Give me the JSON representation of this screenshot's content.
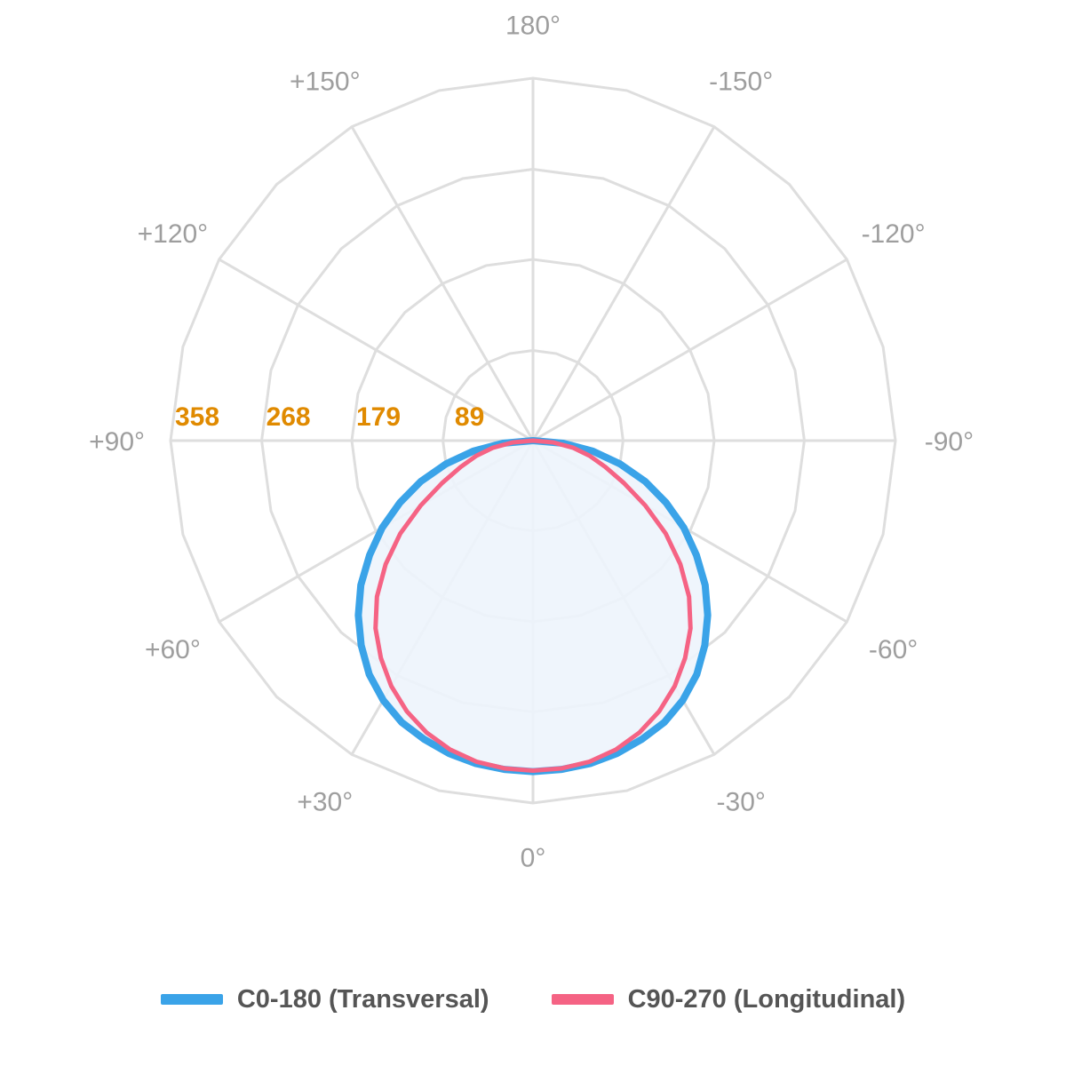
{
  "chart_data": {
    "type": "polar-line",
    "angular_axis": {
      "direction": "clockwise",
      "zero": "bottom",
      "tick_labels": [
        {
          "angle": 0,
          "label": "0°"
        },
        {
          "angle": 30,
          "label": "+30°"
        },
        {
          "angle": 60,
          "label": "+60°"
        },
        {
          "angle": 90,
          "label": "+90°"
        },
        {
          "angle": 120,
          "label": "+120°"
        },
        {
          "angle": 150,
          "label": "+150°"
        },
        {
          "angle": 180,
          "label": "180°"
        },
        {
          "angle": -150,
          "label": "-150°"
        },
        {
          "angle": -120,
          "label": "-120°"
        },
        {
          "angle": -90,
          "label": "-90°"
        },
        {
          "angle": -60,
          "label": "-60°"
        },
        {
          "angle": -30,
          "label": "-30°"
        }
      ],
      "spoke_step_deg": 15
    },
    "radial_axis": {
      "range": [
        0,
        358
      ],
      "rings": [
        89,
        179,
        268,
        358
      ],
      "ring_labels": [
        "89",
        "179",
        "268",
        "358"
      ]
    },
    "series": [
      {
        "name": "C0-180 (Transversal)",
        "color": "#3aa3e8",
        "fill": "#edf4fc",
        "points": [
          [
            -90,
            0
          ],
          [
            -85,
            30
          ],
          [
            -80,
            60
          ],
          [
            -75,
            89
          ],
          [
            -70,
            118
          ],
          [
            -65,
            145
          ],
          [
            -60,
            172
          ],
          [
            -55,
            197
          ],
          [
            -50,
            222
          ],
          [
            -45,
            244
          ],
          [
            -40,
            264
          ],
          [
            -35,
            282
          ],
          [
            -30,
            296
          ],
          [
            -25,
            307
          ],
          [
            -20,
            314
          ],
          [
            -15,
            320
          ],
          [
            -10,
            324
          ],
          [
            -5,
            326
          ],
          [
            0,
            327
          ],
          [
            5,
            326
          ],
          [
            10,
            324
          ],
          [
            15,
            320
          ],
          [
            20,
            314
          ],
          [
            25,
            307
          ],
          [
            30,
            296
          ],
          [
            35,
            282
          ],
          [
            40,
            264
          ],
          [
            45,
            244
          ],
          [
            50,
            222
          ],
          [
            55,
            197
          ],
          [
            60,
            172
          ],
          [
            65,
            145
          ],
          [
            70,
            118
          ],
          [
            75,
            89
          ],
          [
            80,
            60
          ],
          [
            85,
            30
          ],
          [
            90,
            0
          ]
        ]
      },
      {
        "name": "C90-270 (Longitudinal)",
        "color": "#f56384",
        "points": [
          [
            -90,
            0
          ],
          [
            -85,
            20
          ],
          [
            -80,
            40
          ],
          [
            -75,
            58
          ],
          [
            -70,
            76
          ],
          [
            -65,
            99
          ],
          [
            -60,
            128
          ],
          [
            -55,
            160
          ],
          [
            -50,
            190
          ],
          [
            -45,
            218
          ],
          [
            -40,
            242
          ],
          [
            -35,
            262
          ],
          [
            -30,
            280
          ],
          [
            -25,
            295
          ],
          [
            -20,
            307
          ],
          [
            -15,
            316
          ],
          [
            -10,
            322
          ],
          [
            -5,
            325
          ],
          [
            0,
            326
          ],
          [
            5,
            325
          ],
          [
            10,
            322
          ],
          [
            15,
            316
          ],
          [
            20,
            307
          ],
          [
            25,
            295
          ],
          [
            30,
            280
          ],
          [
            35,
            262
          ],
          [
            40,
            242
          ],
          [
            45,
            218
          ],
          [
            50,
            190
          ],
          [
            55,
            160
          ],
          [
            60,
            128
          ],
          [
            65,
            99
          ],
          [
            70,
            76
          ],
          [
            75,
            58
          ],
          [
            80,
            40
          ],
          [
            85,
            20
          ],
          [
            90,
            0
          ]
        ]
      }
    ],
    "legend": {
      "position": "bottom",
      "entries": [
        "C0-180 (Transversal)",
        "C90-270 (Longitudinal)"
      ]
    },
    "grid": true
  }
}
